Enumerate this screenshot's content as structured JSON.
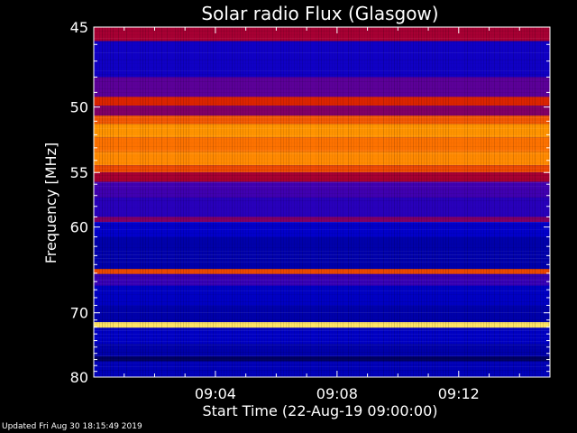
{
  "chart_data": {
    "type": "heatmap",
    "title": "Solar radio Flux (Glasgow)",
    "xlabel": "Start Time (22-Aug-19 09:00:00)",
    "ylabel": "Frequency [MHz]",
    "x_ticks": [
      "09:04",
      "09:08",
      "09:12"
    ],
    "x_tick_minutes": [
      4,
      8,
      12
    ],
    "xlim_minutes": [
      0,
      15
    ],
    "y_ticks": [
      45,
      50,
      55,
      60,
      70,
      80
    ],
    "ylim": [
      45,
      80
    ],
    "y_scale": "reciprocal",
    "colormap": [
      "#000000",
      "#0000cc",
      "#5000aa",
      "#cc0000",
      "#ff7700",
      "#ffd200",
      "#ffffff"
    ],
    "bands": [
      {
        "f_low": 45.0,
        "f_high": 45.8,
        "level": 0.45
      },
      {
        "f_low": 45.8,
        "f_high": 48.0,
        "level": 0.2
      },
      {
        "f_low": 48.0,
        "f_high": 49.3,
        "level": 0.35
      },
      {
        "f_low": 49.3,
        "f_high": 49.9,
        "level": 0.55
      },
      {
        "f_low": 49.9,
        "f_high": 50.6,
        "level": 0.4
      },
      {
        "f_low": 50.6,
        "f_high": 51.2,
        "level": 0.62
      },
      {
        "f_low": 51.2,
        "f_high": 52.2,
        "level": 0.72
      },
      {
        "f_low": 52.2,
        "f_high": 53.3,
        "level": 0.66
      },
      {
        "f_low": 53.3,
        "f_high": 54.4,
        "level": 0.7
      },
      {
        "f_low": 54.4,
        "f_high": 55.0,
        "level": 0.6
      },
      {
        "f_low": 55.0,
        "f_high": 55.8,
        "level": 0.45
      },
      {
        "f_low": 55.8,
        "f_high": 57.2,
        "level": 0.3
      },
      {
        "f_low": 57.2,
        "f_high": 59.0,
        "level": 0.25
      },
      {
        "f_low": 59.0,
        "f_high": 59.5,
        "level": 0.4
      },
      {
        "f_low": 59.5,
        "f_high": 61.0,
        "level": 0.17
      },
      {
        "f_low": 61.0,
        "f_high": 64.5,
        "level": 0.14
      },
      {
        "f_low": 64.5,
        "f_high": 65.1,
        "level": 0.6
      },
      {
        "f_low": 65.1,
        "f_high": 66.5,
        "level": 0.28
      },
      {
        "f_low": 66.5,
        "f_high": 69.0,
        "level": 0.16
      },
      {
        "f_low": 69.0,
        "f_high": 71.3,
        "level": 0.14
      },
      {
        "f_low": 71.3,
        "f_high": 72.1,
        "level": 0.9
      },
      {
        "f_low": 72.1,
        "f_high": 74.5,
        "level": 0.16
      },
      {
        "f_low": 74.5,
        "f_high": 76.5,
        "level": 0.14
      },
      {
        "f_low": 76.5,
        "f_high": 77.3,
        "level": 0.08
      },
      {
        "f_low": 77.3,
        "f_high": 80.0,
        "level": 0.15
      }
    ]
  },
  "footer": {
    "updated": "Updated Fri Aug 30 18:15:49 2019"
  }
}
